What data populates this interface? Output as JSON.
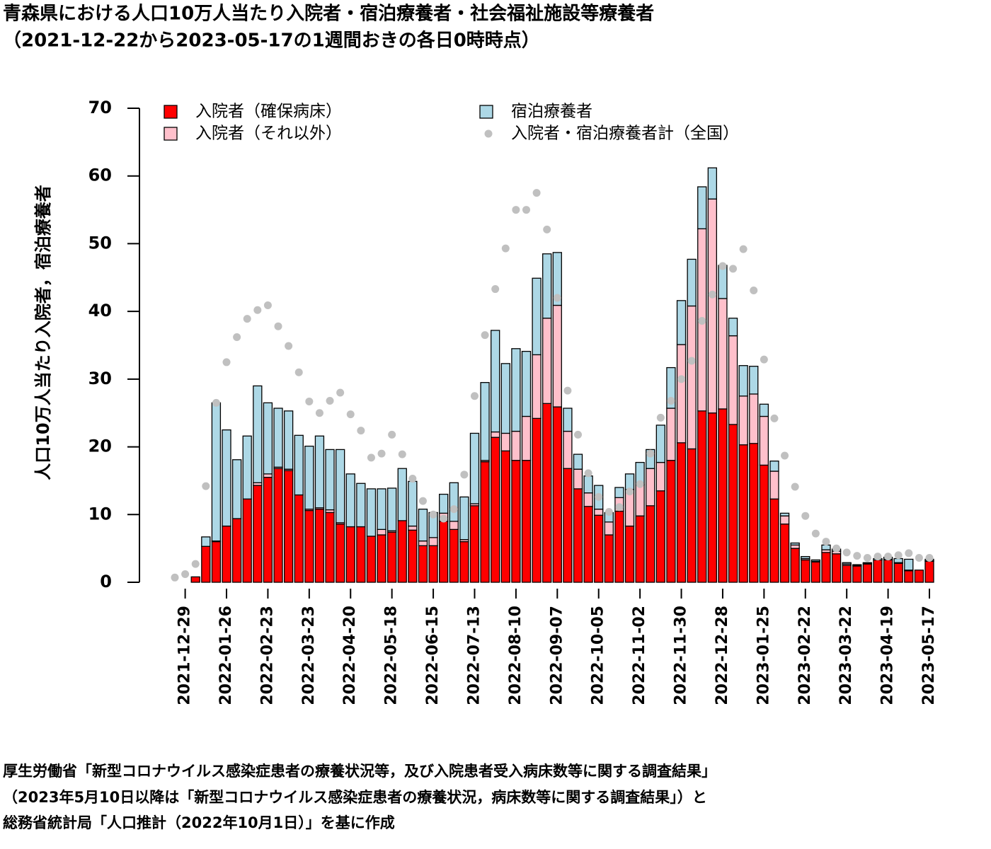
{
  "chart_data": {
    "type": "bar",
    "stacked": true,
    "title": "青森県における人口10万人当たり入院者・宿泊療養者・社会福祉施設等療養者",
    "subtitle": "（2021-12-22から2023-05-17の1週間おきの各日0時時点）",
    "y_label": "人口10万人当たり入院者，宿泊療養者",
    "notes": [
      "厚生労働省「新型コロナウイルス感染症患者の療養状況等，及び入院患者受入病床数等に関する調査結果」",
      "（2023年5月10日以降は「新型コロナウイルス感染症患者の療養状況，病床数等に関する調査結果」）と",
      "総務省統計局「人口推計（2022年10月1日）」を基に作成"
    ],
    "categories": [
      null,
      "2021-12-29",
      null,
      null,
      null,
      "2022-01-26",
      null,
      null,
      null,
      "2022-02-23",
      null,
      null,
      null,
      "2022-03-23",
      null,
      null,
      null,
      "2022-04-20",
      null,
      null,
      null,
      "2022-05-18",
      null,
      null,
      null,
      "2022-06-15",
      null,
      null,
      null,
      "2022-07-13",
      null,
      null,
      null,
      "2022-08-10",
      null,
      null,
      null,
      "2022-09-07",
      null,
      null,
      null,
      "2022-10-05",
      null,
      null,
      null,
      "2022-11-02",
      null,
      null,
      null,
      "2022-11-30",
      null,
      null,
      null,
      "2022-12-28",
      null,
      null,
      null,
      "2023-01-25",
      null,
      null,
      null,
      "2023-02-22",
      null,
      null,
      null,
      "2023-03-22",
      null,
      null,
      null,
      "2023-04-19",
      null,
      null,
      null,
      "2023-05-17"
    ],
    "series": [
      {
        "name": "入院者（確保病床）",
        "color": "#ff0000",
        "values": [
          0,
          0,
          0.8,
          5.3,
          6.0,
          8.3,
          9.4,
          12.3,
          14.3,
          15.5,
          16.8,
          16.5,
          12.9,
          10.6,
          10.8,
          10.3,
          8.6,
          8.2,
          8.2,
          6.8,
          7.0,
          7.4,
          9.1,
          7.7,
          5.4,
          5.4,
          9.0,
          7.8,
          6.0,
          11.3,
          17.8,
          21.4,
          19.4,
          18.0,
          18.0,
          24.2,
          26.4,
          25.9,
          16.8,
          13.8,
          11.2,
          9.9,
          7.0,
          10.5,
          8.3,
          9.8,
          11.3,
          13.5,
          18.0,
          20.6,
          19.7,
          25.3,
          25.0,
          25.6,
          23.3,
          20.3,
          20.5,
          17.3,
          12.3,
          8.6,
          5.0,
          3.3,
          3.0,
          4.4,
          4.2,
          2.5,
          2.4,
          2.7,
          3.3,
          3.3,
          2.8,
          1.7,
          1.8,
          3.1
        ]
      },
      {
        "name": "入院者（それ以外）",
        "color": "#ffc0cb",
        "values": [
          0,
          0,
          0,
          0,
          0.1,
          0,
          0,
          0,
          0.4,
          0.5,
          0.2,
          0.2,
          0,
          0.2,
          0.2,
          0.4,
          0.2,
          0,
          0,
          0,
          0.8,
          0.2,
          0,
          0.6,
          0.7,
          1.2,
          1.2,
          1.2,
          0.3,
          0.3,
          0.2,
          0.8,
          2.6,
          4.3,
          6.5,
          9.4,
          12.6,
          15.0,
          5.5,
          2.9,
          2.0,
          0.9,
          1.9,
          2.0,
          5.4,
          4.6,
          5.5,
          4.2,
          7.7,
          14.5,
          21.1,
          26.9,
          31.6,
          16.3,
          13.1,
          7.2,
          7.3,
          7.2,
          4.1,
          1.2,
          0.5,
          0.2,
          0.1,
          0.4,
          0.4,
          0.2,
          0.1,
          0.1,
          0,
          0.1,
          0.1,
          0.1,
          0,
          0.1
        ]
      },
      {
        "name": "宿泊療養者",
        "color": "#add8e6",
        "values": [
          0,
          0,
          0,
          1.4,
          20.4,
          14.2,
          8.7,
          9.3,
          14.3,
          10.5,
          8.7,
          8.6,
          8.8,
          9.3,
          10.6,
          8.9,
          10.8,
          7.8,
          6.4,
          7.0,
          6.0,
          6.3,
          7.7,
          6.6,
          4.7,
          3.7,
          2.8,
          5.7,
          6.3,
          10.4,
          11.5,
          15.0,
          10.3,
          12.2,
          9.6,
          11.3,
          9.5,
          7.8,
          3.4,
          2.2,
          2.5,
          3.5,
          1.4,
          1.5,
          2.3,
          3.3,
          2.8,
          5.5,
          6.0,
          6.5,
          6.9,
          6.2,
          4.6,
          4.9,
          2.6,
          4.5,
          4.1,
          1.8,
          1.5,
          0.4,
          0.3,
          0.3,
          0.2,
          0.7,
          0.3,
          0.2,
          0.1,
          0.1,
          0.2,
          0.3,
          0.6,
          1.6,
          0,
          0.2
        ]
      },
      {
        "name": "入院者・宿泊療養者計（全国）",
        "type": "scatter",
        "color": "#c0c0c0",
        "values": [
          0.7,
          1.2,
          2.7,
          14.2,
          26.5,
          32.5,
          36.2,
          38.9,
          40.2,
          40.9,
          37.8,
          34.9,
          31.0,
          26.7,
          25.0,
          26.8,
          28.0,
          24.8,
          22.4,
          18.4,
          19.0,
          21.8,
          18.9,
          15.3,
          12.0,
          10.0,
          9.4,
          10.8,
          15.9,
          27.5,
          36.5,
          43.3,
          49.3,
          55.0,
          55.0,
          57.5,
          52.1,
          42.0,
          28.3,
          21.8,
          16.1,
          12.6,
          10.4,
          11.1,
          13.4,
          14.5,
          19.0,
          24.3,
          26.8,
          30.0,
          32.7,
          38.6,
          42.5,
          46.7,
          46.3,
          49.2,
          43.1,
          32.9,
          24.2,
          18.7,
          14.1,
          9.8,
          7.2,
          6.0,
          5.0,
          4.4,
          3.9,
          3.6,
          3.8,
          3.8,
          4.0,
          4.3,
          3.6,
          3.6
        ]
      }
    ],
    "ylim": [
      0,
      70
    ],
    "yticks": [
      0,
      10,
      20,
      30,
      40,
      50,
      60,
      70
    ]
  }
}
